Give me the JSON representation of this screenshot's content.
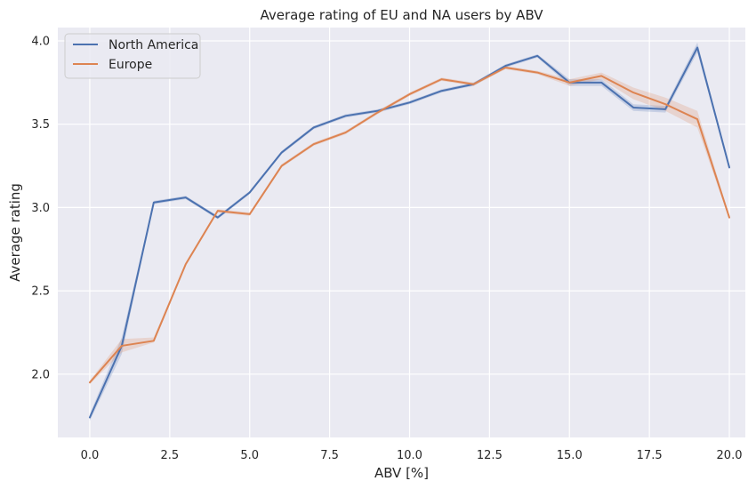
{
  "chart_data": {
    "type": "line",
    "title": "Average rating of EU and NA users by ABV",
    "xlabel": "ABV [%]",
    "ylabel": "Average rating",
    "xlim": [
      -1,
      20.5
    ],
    "ylim": [
      1.62,
      4.08
    ],
    "grid": true,
    "legend_position": "top-left",
    "x_ticks": [
      {
        "value": 0,
        "label": "0.0"
      },
      {
        "value": 2.5,
        "label": "2.5"
      },
      {
        "value": 5,
        "label": "5.0"
      },
      {
        "value": 7.5,
        "label": "7.5"
      },
      {
        "value": 10,
        "label": "10.0"
      },
      {
        "value": 12.5,
        "label": "12.5"
      },
      {
        "value": 15,
        "label": "15.0"
      },
      {
        "value": 17.5,
        "label": "17.5"
      },
      {
        "value": 20,
        "label": "20.0"
      }
    ],
    "y_ticks": [
      {
        "value": 2.0,
        "label": "2.0"
      },
      {
        "value": 2.5,
        "label": "2.5"
      },
      {
        "value": 3.0,
        "label": "3.0"
      },
      {
        "value": 3.5,
        "label": "3.5"
      },
      {
        "value": 4.0,
        "label": "4.0"
      }
    ],
    "x": [
      0,
      1,
      2,
      3,
      4,
      5,
      6,
      7,
      8,
      9,
      10,
      11,
      12,
      13,
      14,
      15,
      16,
      17,
      18,
      19,
      20
    ],
    "series": [
      {
        "name": "North America",
        "color": "#4c72b0",
        "values": [
          1.74,
          2.17,
          3.03,
          3.06,
          2.94,
          3.09,
          3.33,
          3.48,
          3.55,
          3.58,
          3.63,
          3.7,
          3.74,
          3.85,
          3.91,
          3.75,
          3.75,
          3.6,
          3.59,
          3.96,
          3.24
        ],
        "ci_lower": [
          1.72,
          2.12,
          3.02,
          3.05,
          2.93,
          3.08,
          3.32,
          3.47,
          3.54,
          3.57,
          3.62,
          3.69,
          3.73,
          3.84,
          3.9,
          3.73,
          3.73,
          3.58,
          3.57,
          3.93,
          3.23
        ],
        "ci_upper": [
          1.76,
          2.22,
          3.04,
          3.07,
          2.95,
          3.1,
          3.34,
          3.49,
          3.56,
          3.59,
          3.64,
          3.71,
          3.75,
          3.86,
          3.92,
          3.77,
          3.77,
          3.62,
          3.61,
          3.99,
          3.25
        ]
      },
      {
        "name": "Europe",
        "color": "#dd8452",
        "values": [
          1.95,
          2.17,
          2.2,
          2.66,
          2.98,
          2.96,
          3.25,
          3.38,
          3.45,
          3.57,
          3.68,
          3.77,
          3.74,
          3.84,
          3.81,
          3.75,
          3.79,
          3.69,
          3.62,
          3.53,
          2.94
        ],
        "ci_lower": [
          1.94,
          2.13,
          2.19,
          2.65,
          2.97,
          2.95,
          3.24,
          3.37,
          3.44,
          3.56,
          3.67,
          3.76,
          3.73,
          3.83,
          3.8,
          3.73,
          3.77,
          3.65,
          3.58,
          3.48,
          2.93
        ],
        "ci_upper": [
          1.96,
          2.21,
          2.22,
          2.67,
          2.99,
          2.97,
          3.26,
          3.39,
          3.46,
          3.58,
          3.69,
          3.78,
          3.75,
          3.85,
          3.82,
          3.77,
          3.81,
          3.72,
          3.66,
          3.58,
          2.95
        ]
      }
    ],
    "style": {
      "background": "#ffffff",
      "plot_background": "#eaeaf2",
      "grid_color": "#ffffff"
    }
  }
}
